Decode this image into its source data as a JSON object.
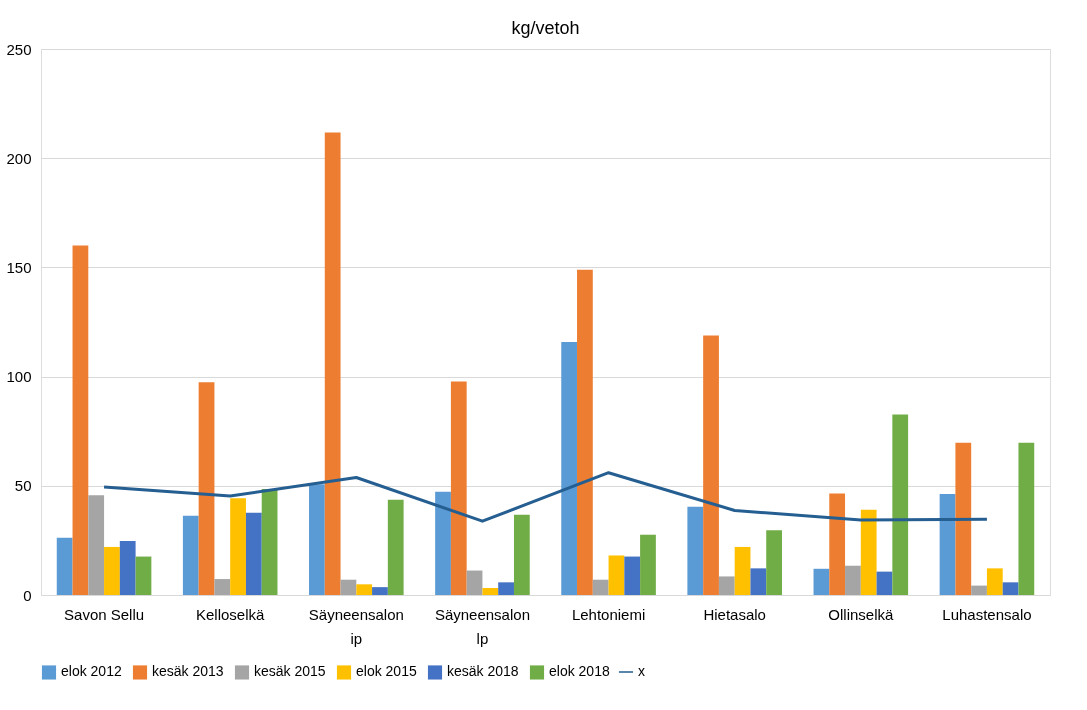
{
  "chart_data": {
    "type": "bar",
    "title": "kg/vetoh",
    "categories": [
      "Savon Sellu",
      "Kelloselkä",
      "Säyneensalon ip",
      "Säyneensalon lp",
      "Lehtoniemi",
      "Hietasalo",
      "Ollinselkä",
      "Luhastensalo"
    ],
    "series": [
      {
        "name": "elok 2012",
        "color": "#5b9bd5",
        "values": [
          26.2,
          36.3,
          50.7,
          47.3,
          115.8,
          40.4,
          12,
          46.2
        ]
      },
      {
        "name": "kesäk 2013",
        "color": "#ed7d31",
        "values": [
          160,
          97.4,
          211.8,
          97.7,
          148.9,
          118.8,
          46.5,
          69.7
        ]
      },
      {
        "name": "kesäk 2015",
        "color": "#a5a5a5",
        "values": [
          45.7,
          7.3,
          7,
          11.2,
          7,
          8.5,
          13.4,
          4.3
        ]
      },
      {
        "name": "elok 2015",
        "color": "#ffc000",
        "values": [
          22,
          44.3,
          4.9,
          3.2,
          18.1,
          22,
          39,
          12.2
        ]
      },
      {
        "name": "kesäk 2018",
        "color": "#4472c4",
        "values": [
          24.7,
          37.7,
          3.6,
          5.8,
          17.6,
          12.2,
          10.7,
          5.8
        ]
      },
      {
        "name": "elok 2018",
        "color": "#70ad47",
        "values": [
          17.6,
          48.5,
          43.6,
          36.7,
          27.6,
          29.6,
          82.7,
          69.7
        ]
      },
      {
        "name": "x",
        "type": "line",
        "color": "#255e91",
        "values": [
          49.4,
          45.3,
          53.8,
          33.8,
          56,
          38.7,
          34.3,
          34.7
        ]
      }
    ],
    "ylim": [
      0,
      250
    ],
    "yticks": [
      0,
      50,
      100,
      150,
      200,
      250
    ],
    "grid": "y",
    "legend": "bottom",
    "marker": "none"
  }
}
